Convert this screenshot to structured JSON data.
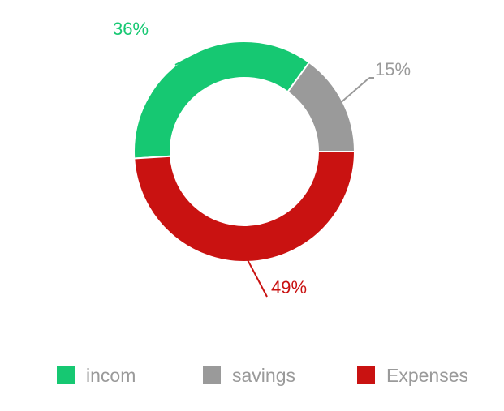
{
  "chart_data": {
    "type": "pie",
    "style": "donut",
    "title": "",
    "slices": [
      {
        "name": "incom",
        "value": 36,
        "label": "36%",
        "color": "#16c872"
      },
      {
        "name": "savings",
        "value": 15,
        "label": "15%",
        "color": "#9a9a9a"
      },
      {
        "name": "Expenses",
        "value": 49,
        "label": "49%",
        "color": "#c91211"
      }
    ],
    "legend": {
      "placement": "bottom",
      "items": [
        "incom",
        "savings",
        "Expenses"
      ]
    },
    "start_angle_deg": 0,
    "direction": "clockwise"
  }
}
